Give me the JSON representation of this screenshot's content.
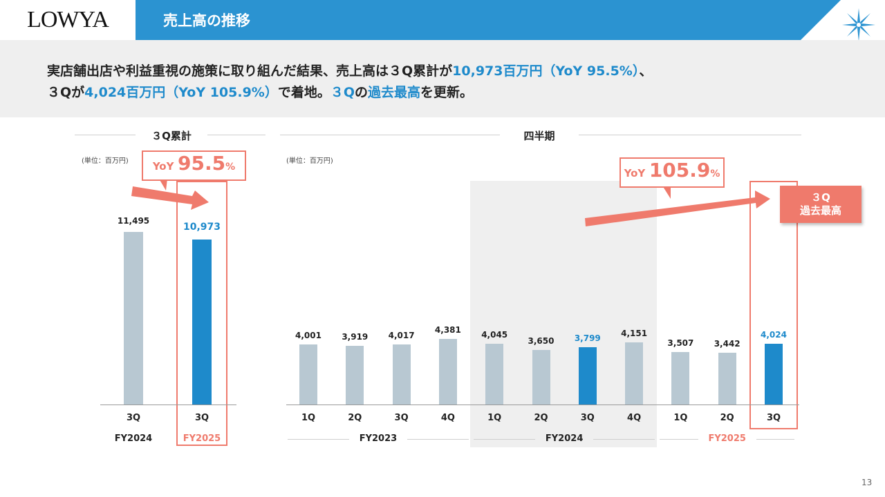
{
  "header": {
    "logo": "LOWYA",
    "title": "売上高の推移"
  },
  "lead": {
    "line1_a": "実店舗出店や利益重視の施策に取り組んだ結果、売上高は３Q累計が",
    "line1_b": "10,973百万円（YoY 95.5%）",
    "line1_c": "、",
    "line2_a": "３Qが",
    "line2_b": "4,024百万円（YoY 105.9%）",
    "line2_c": "で着地。",
    "line2_d": "３Q",
    "line2_e": "の",
    "line2_f": "過去最高",
    "line2_g": "を更新。"
  },
  "colors": {
    "bar": "#b8c8d2",
    "bar_highlight": "#1e8acb",
    "accent": "#ef7a6c",
    "title_bar": "#2b93d1"
  },
  "chart_data": [
    {
      "type": "bar",
      "title": "３Q累計",
      "unit": "(単位：百万円)",
      "categories": [
        "3Q",
        "3Q"
      ],
      "groups": [
        "FY2024",
        "FY2025"
      ],
      "values": [
        11495,
        10973
      ],
      "value_labels": [
        "11,495",
        "10,973"
      ],
      "highlight_index": 1,
      "yoy_prefix": "YoY",
      "yoy_value": "95.5",
      "yoy_unit": "%"
    },
    {
      "type": "bar",
      "title": "四半期",
      "unit": "(単位：百万円)",
      "categories": [
        "1Q",
        "2Q",
        "3Q",
        "4Q",
        "1Q",
        "2Q",
        "3Q",
        "4Q",
        "1Q",
        "2Q",
        "3Q"
      ],
      "groups": [
        {
          "label": "FY2023",
          "count": 4
        },
        {
          "label": "FY2024",
          "count": 4
        },
        {
          "label": "FY2025",
          "count": 3
        }
      ],
      "values": [
        4001,
        3919,
        4017,
        4381,
        4045,
        3650,
        3799,
        4151,
        3507,
        3442,
        4024
      ],
      "value_labels": [
        "4,001",
        "3,919",
        "4,017",
        "4,381",
        "4,045",
        "3,650",
        "3,799",
        "4,151",
        "3,507",
        "3,442",
        "4,024"
      ],
      "highlight_indices": [
        6,
        10
      ],
      "yoy_prefix": "YoY",
      "yoy_value": "105.9",
      "yoy_unit": "%",
      "record_line1": "３Q",
      "record_line2": "過去最高"
    }
  ],
  "page_number": "13"
}
